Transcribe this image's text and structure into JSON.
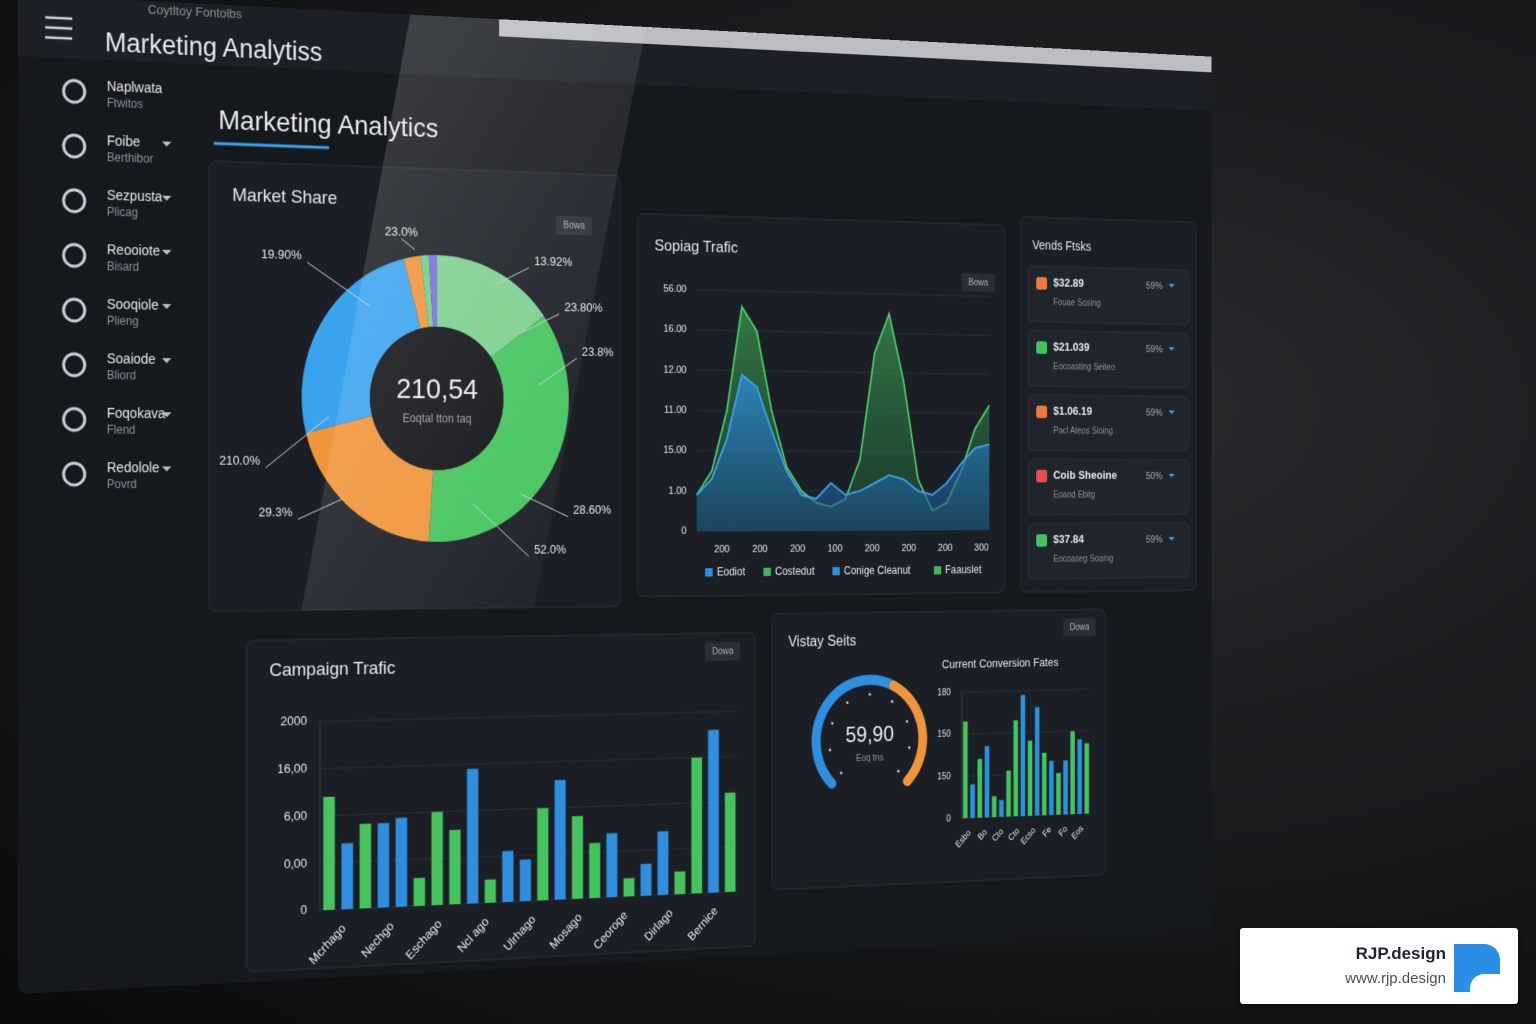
{
  "window": {
    "title": "Coytltoy Fontolbs",
    "app_title": "Marketing Analytiss"
  },
  "sidebar": [
    {
      "label": "Naplwata",
      "sub": "Ftwitos"
    },
    {
      "label": "Foibe",
      "sub": "Berthibor"
    },
    {
      "label": "Sezpusta",
      "sub": "Plicag"
    },
    {
      "label": "Reooiote",
      "sub": "Bisard"
    },
    {
      "label": "Sooqiole",
      "sub": "Plieng"
    },
    {
      "label": "Soaiode",
      "sub": "Bliord"
    },
    {
      "label": "Foqokava",
      "sub": "Flend"
    },
    {
      "label": "Redolole",
      "sub": "Povrd"
    }
  ],
  "page_title": "Marketing Analytics",
  "market_share": {
    "type": "pie",
    "title": "Market Share",
    "button": "Bowa",
    "center_value": "210,54",
    "center_label": "Eoqtal tton taq",
    "values": [
      15,
      36,
      20,
      25,
      2,
      1,
      1
    ],
    "colors": [
      "#7fd08f",
      "#45c45e",
      "#f0953a",
      "#3aa3ee",
      "#f0953a",
      "#6fd08a",
      "#7b6fe0"
    ],
    "callouts": [
      "19.90%",
      "23.0%",
      "13.92%",
      "23.80%",
      "23.8%",
      "28.60%",
      "52.0%",
      "29.3%",
      "210.0%"
    ]
  },
  "social_traffic": {
    "type": "area",
    "title": "Sopiag Trafic",
    "button": "Bowa",
    "ylim": [
      0,
      6
    ],
    "yticks": [
      0,
      {
        "value": 1,
        "label": "1.00"
      },
      {
        "value": 2,
        "label": "15.00"
      },
      {
        "value": 3,
        "label": "11.00"
      },
      {
        "value": 4,
        "label": "12.00"
      },
      {
        "value": 5,
        "label": "16.00"
      },
      {
        "value": 6,
        "label": "56.00"
      }
    ],
    "x_labels": [
      "200",
      "200",
      "200",
      "100",
      "200",
      "200",
      "200",
      "300"
    ],
    "series": [
      {
        "name": "Costedut",
        "color": "#4ccc6a",
        "values": [
          0.9,
          1.5,
          3.0,
          5.6,
          5.0,
          3.0,
          1.6,
          1.0,
          0.7,
          0.6,
          0.8,
          1.8,
          4.5,
          5.5,
          3.8,
          1.3,
          0.5,
          0.7,
          1.5,
          2.6,
          3.2
        ]
      },
      {
        "name": "Eodiot",
        "color": "#3aa3ee",
        "values": [
          0.9,
          1.3,
          2.3,
          3.9,
          3.6,
          2.5,
          1.5,
          0.9,
          0.8,
          1.2,
          0.9,
          1.0,
          1.2,
          1.4,
          1.3,
          1.0,
          0.9,
          1.2,
          1.7,
          2.1,
          2.2
        ]
      }
    ],
    "legend": [
      {
        "name": "Eodiot",
        "color": "#2e8fe0"
      },
      {
        "name": "Costedut",
        "color": "#3dba5a"
      },
      {
        "name": "Conige Cleanut",
        "color": "#2e8fe0"
      },
      {
        "name": "Faauslet",
        "color": "#3dba5a"
      }
    ]
  },
  "trends": {
    "title": "Vends Ftsks",
    "items": [
      {
        "amount": "$32.89",
        "desc": "Fouae Sosing",
        "pct": "59%",
        "color": "#f07a3a"
      },
      {
        "amount": "$21.039",
        "desc": "Eocoasting Seiteo",
        "pct": "59%",
        "color": "#45c45e"
      },
      {
        "amount": "$1.06.19",
        "desc": "Pacl Ateos Sioing",
        "pct": "59%",
        "color": "#f07a3a"
      },
      {
        "amount": "Coib Sheoine",
        "desc": "Eoaod Ebitg",
        "pct": "50%",
        "color": "#e85050"
      },
      {
        "amount": "$37.84",
        "desc": "Eocoaseg Soaing",
        "pct": "59%",
        "color": "#45c45e"
      }
    ]
  },
  "campaign_traffic": {
    "type": "bar",
    "title": "Campaign Trafic",
    "button": "Dowa",
    "ylim": [
      0,
      4
    ],
    "yticks": [
      0,
      {
        "value": 1,
        "label": "0,00"
      },
      {
        "value": 2,
        "label": "6,00"
      },
      {
        "value": 3,
        "label": "16,00"
      },
      {
        "value": 4,
        "label": "2000"
      }
    ],
    "values": [
      2.4,
      1.4,
      1.8,
      1.8,
      1.9,
      0.6,
      2.0,
      1.6,
      2.9,
      0.5,
      1.1,
      0.9,
      2.0,
      2.6,
      1.8,
      1.2,
      1.4,
      0.4,
      0.7,
      1.4,
      0.5,
      3.0,
      3.6,
      2.2
    ],
    "colors": [
      "#45c45e",
      "#2e8fe0",
      "#45c45e",
      "#2e8fe0",
      "#2e8fe0",
      "#45c45e",
      "#45c45e",
      "#45c45e",
      "#2e8fe0",
      "#45c45e",
      "#2e8fe0",
      "#2e8fe0",
      "#45c45e",
      "#2e8fe0",
      "#45c45e",
      "#45c45e",
      "#2e8fe0",
      "#45c45e",
      "#2e8fe0",
      "#2e8fe0",
      "#45c45e",
      "#45c45e",
      "#2e8fe0",
      "#45c45e"
    ],
    "x_labels": [
      "Mcrhago",
      "Nechgo",
      "Eschago",
      "Ncl ago",
      "Ulrhago",
      "Mosago",
      "Ceoroge",
      "Dirlago",
      "Bernice"
    ]
  },
  "visitor_stats": {
    "title": "Vistay Seits",
    "button": "Dowa",
    "gauge": {
      "value": 59.9,
      "value_label": "59,90",
      "max": 100,
      "label": "Eoq tns"
    },
    "conversion": {
      "type": "bar",
      "title": "Current Conversion Fates",
      "ylim": [
        0,
        3
      ],
      "yticks": [
        0,
        {
          "value": 1,
          "label": "150"
        },
        {
          "value": 2,
          "label": "150"
        },
        {
          "value": 3,
          "label": "180"
        }
      ],
      "values": [
        2.3,
        0.8,
        1.4,
        1.7,
        0.5,
        0.4,
        1.1,
        2.3,
        2.9,
        1.8,
        2.6,
        1.5,
        1.3,
        1.0,
        1.3,
        2.0,
        1.8,
        1.7
      ],
      "colors": [
        "#45c45e",
        "#2e8fe0",
        "#45c45e",
        "#2e8fe0",
        "#45c45e",
        "#2e8fe0",
        "#45c45e",
        "#45c45e",
        "#2e8fe0",
        "#45c45e",
        "#2e8fe0",
        "#45c45e",
        "#2e8fe0",
        "#45c45e",
        "#2e8fe0",
        "#45c45e",
        "#2e8fe0",
        "#45c45e"
      ],
      "x_labels": [
        "Esbo",
        "Bo",
        "Cto",
        "Cto",
        "Ecso",
        "Fe",
        "Fo",
        "Eos"
      ]
    }
  },
  "watermark": {
    "brand": "RJP.design",
    "url": "www.rjp.design"
  }
}
